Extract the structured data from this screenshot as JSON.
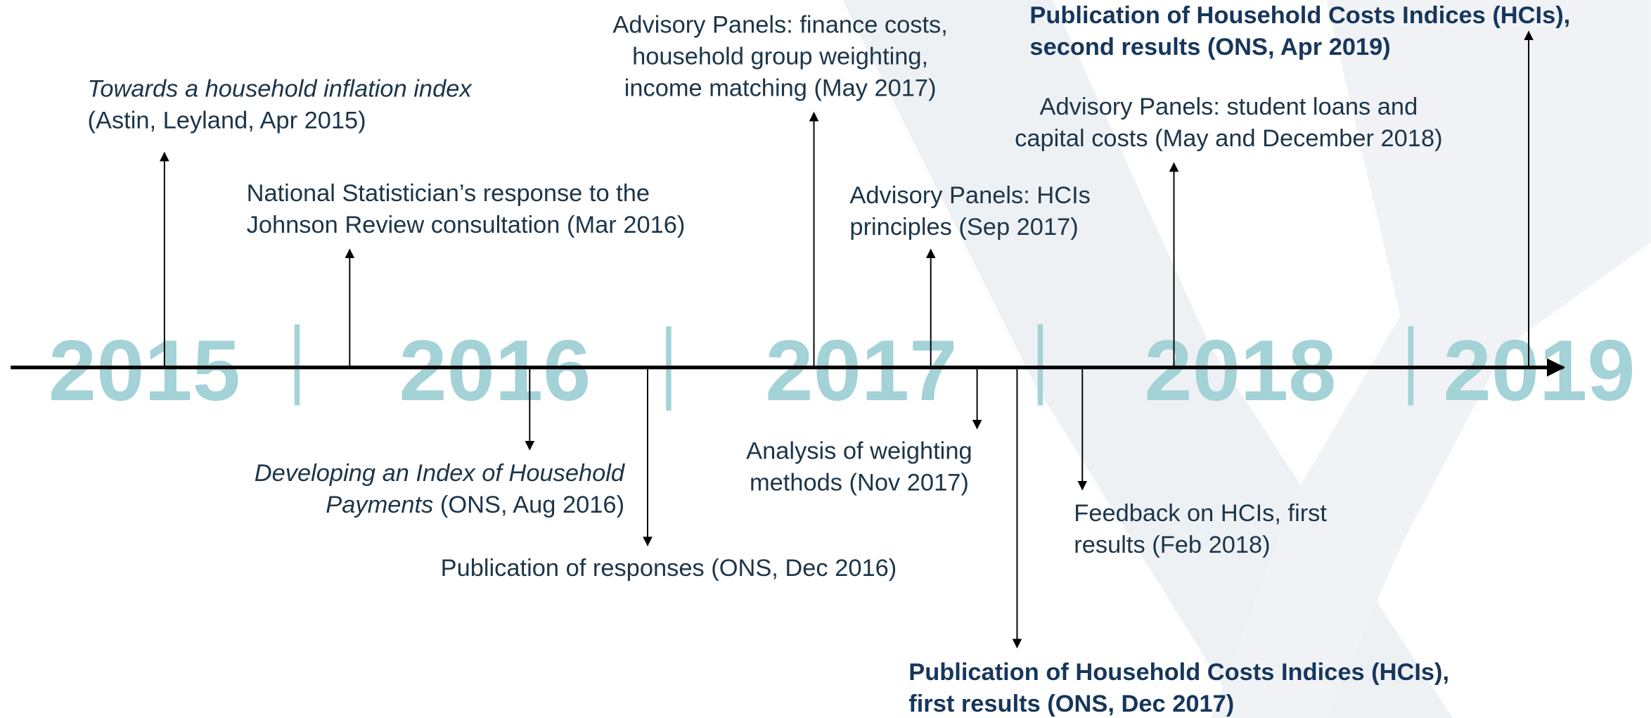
{
  "years": [
    "2015",
    "2016",
    "2017",
    "2018",
    "2019"
  ],
  "events": [
    {
      "lines": [
        [
          {
            "text": "Towards a household inflation index",
            "italic": true
          }
        ],
        [
          {
            "text": "(Astin, Leyland, Apr 2015)"
          }
        ]
      ]
    },
    {
      "lines": [
        [
          {
            "text": "National Statistician’s response to the"
          }
        ],
        [
          {
            "text": "Johnson Review consultation (Mar 2016)"
          }
        ]
      ]
    },
    {
      "lines": [
        [
          {
            "text": "Developing an Index of Household",
            "italic": true
          }
        ],
        [
          {
            "text": "Payments",
            "italic": true
          },
          {
            "text": " (ONS, Aug 2016)"
          }
        ]
      ]
    },
    {
      "lines": [
        [
          {
            "text": "Publication of responses (ONS, Dec 2016)"
          }
        ]
      ]
    },
    {
      "lines": [
        [
          {
            "text": "Advisory Panels: finance costs,"
          }
        ],
        [
          {
            "text": "household group weighting,"
          }
        ],
        [
          {
            "text": "income matching (May 2017)"
          }
        ]
      ]
    },
    {
      "lines": [
        [
          {
            "text": "Advisory Panels: HCIs"
          }
        ],
        [
          {
            "text": "principles (Sep 2017)"
          }
        ]
      ]
    },
    {
      "lines": [
        [
          {
            "text": "Analysis of weighting"
          }
        ],
        [
          {
            "text": "methods (Nov 2017)"
          }
        ]
      ]
    },
    {
      "bold": true,
      "lines": [
        [
          {
            "text": "Publication of Household Costs Indices (HCIs),"
          }
        ],
        [
          {
            "text": "first results (ONS, Dec 2017)"
          }
        ]
      ]
    },
    {
      "lines": [
        [
          {
            "text": "Feedback on HCIs, first"
          }
        ],
        [
          {
            "text": "results (Feb 2018)"
          }
        ]
      ]
    },
    {
      "lines": [
        [
          {
            "text": "Advisory Panels: student loans and"
          }
        ],
        [
          {
            "text": "capital costs (May and December 2018)"
          }
        ]
      ]
    },
    {
      "bold": true,
      "lines": [
        [
          {
            "text": "Publication of Household Costs Indices (HCIs),"
          }
        ],
        [
          {
            "text": "second results (ONS, Apr 2019)"
          }
        ]
      ]
    }
  ]
}
